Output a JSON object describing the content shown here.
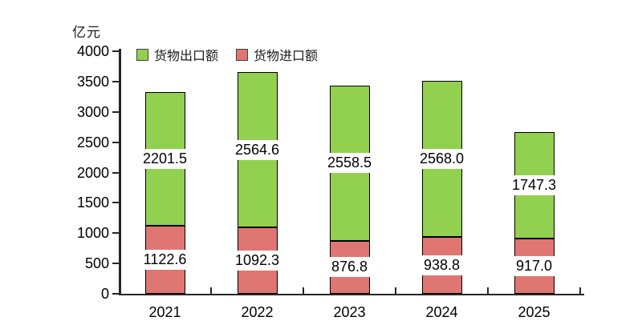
{
  "chart_data": {
    "type": "bar",
    "stacked": true,
    "ylabel": "亿元",
    "categories": [
      "2021",
      "2022",
      "2023",
      "2024",
      "2025"
    ],
    "series": [
      {
        "name": "货物进口额",
        "color": "#e07672",
        "values": [
          1122.6,
          1092.3,
          876.8,
          938.8,
          917.0
        ]
      },
      {
        "name": "货物出口额",
        "color": "#92d050",
        "values": [
          2201.5,
          2564.6,
          2558.5,
          2568.0,
          1747.3
        ]
      }
    ],
    "ylim": [
      0,
      4000
    ],
    "ytick_step": 500,
    "grid": false,
    "legend_position": "top-left-inside",
    "bar_border_color": "#000000",
    "label_background": "#ffffff",
    "axis_color": "#262626"
  },
  "legend": {
    "items": [
      {
        "label": "货物出口额",
        "color": "#92d050"
      },
      {
        "label": "货物进口额",
        "color": "#e07672"
      }
    ]
  }
}
